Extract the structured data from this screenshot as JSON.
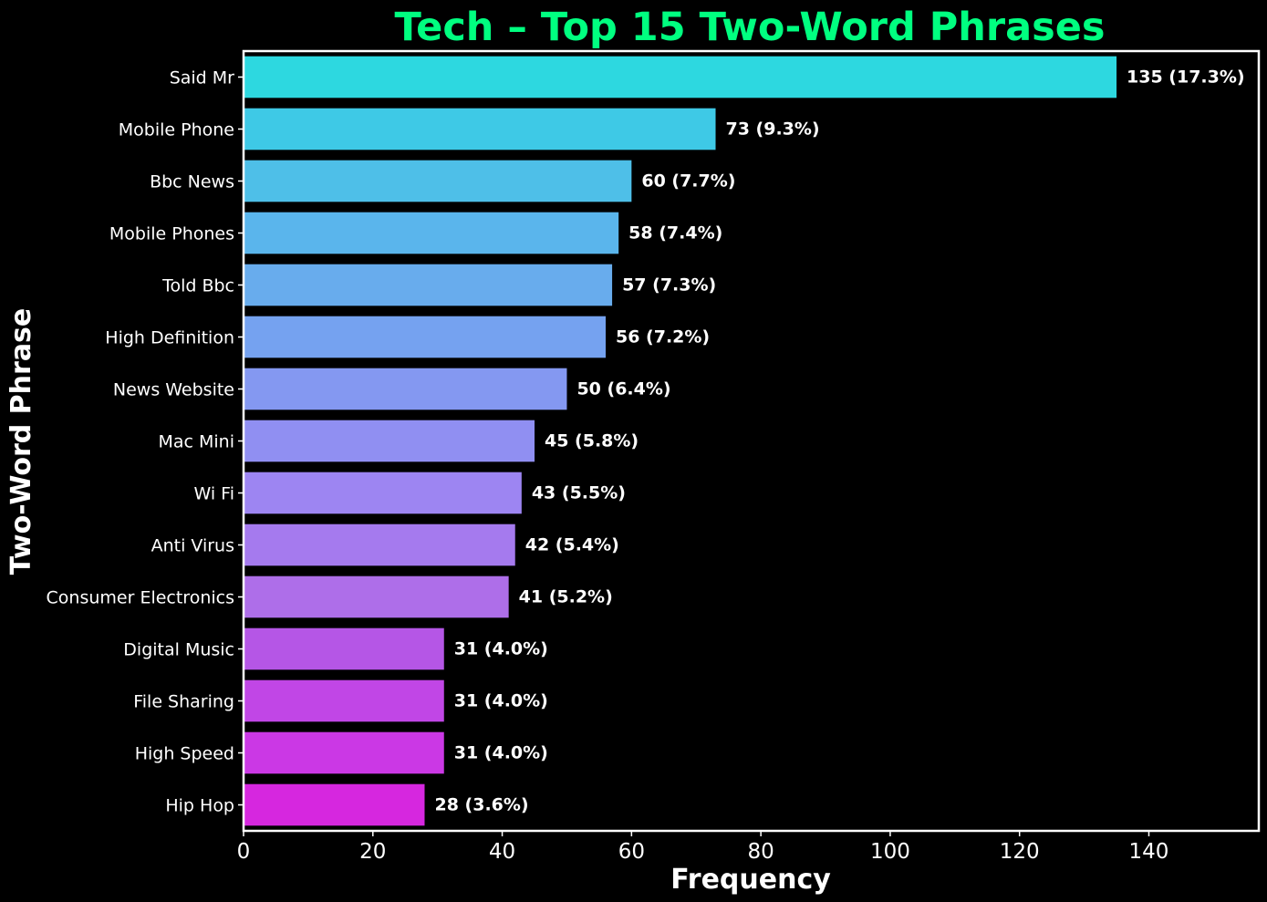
{
  "chart_data": {
    "type": "bar",
    "orientation": "horizontal",
    "title": "Tech – Top 15 Two-Word Phrases",
    "xlabel": "Frequency",
    "ylabel": "Two-Word Phrase",
    "xlim": [
      0,
      157
    ],
    "xticks": [
      0,
      20,
      40,
      60,
      80,
      100,
      120,
      140
    ],
    "categories": [
      "Said Mr",
      "Mobile Phone",
      "Bbc News",
      "Mobile Phones",
      "Told Bbc",
      "High Definition",
      "News Website",
      "Mac Mini",
      "Wi Fi",
      "Anti Virus",
      "Consumer Electronics",
      "Digital Music",
      "File Sharing",
      "High Speed",
      "Hip Hop"
    ],
    "values": [
      135,
      73,
      60,
      58,
      57,
      56,
      50,
      45,
      43,
      42,
      41,
      31,
      31,
      31,
      28
    ],
    "data_labels": [
      "135 (17.3%)",
      "73 (9.3%)",
      "60 (7.7%)",
      "58 (7.4%)",
      "57 (7.3%)",
      "56 (7.2%)",
      "50 (6.4%)",
      "45 (5.8%)",
      "43 (5.5%)",
      "42 (5.4%)",
      "41 (5.2%)",
      "31 (4.0%)",
      "31 (4.0%)",
      "31 (4.0%)",
      "28 (3.6%)"
    ],
    "colors": [
      "#2dd8e0",
      "#3ec9e6",
      "#4ebfe8",
      "#5ab5ec",
      "#68aced",
      "#75a2f0",
      "#8498f1",
      "#908ff2",
      "#9d85f2",
      "#a57aee",
      "#ae6ee9",
      "#b556e6",
      "#c146e6",
      "#cb38e5",
      "#d627df"
    ],
    "title_color": "#00ff80",
    "background": "#000000",
    "grid": false,
    "legend": "none"
  }
}
